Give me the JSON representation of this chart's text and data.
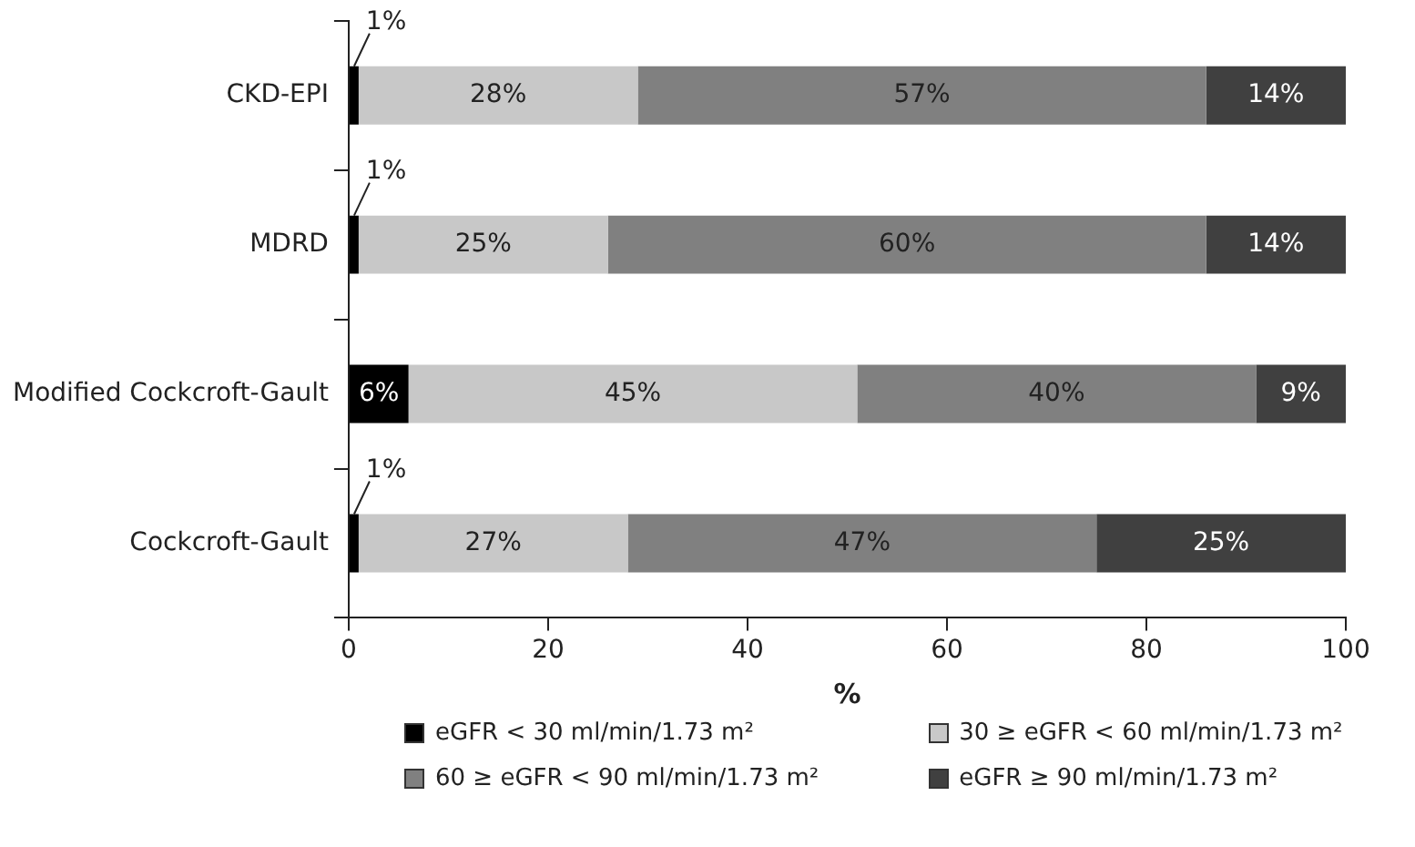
{
  "chart_data": {
    "type": "bar",
    "orientation": "horizontal",
    "stacked": true,
    "categories": [
      "CKD-EPI",
      "MDRD",
      "Modified Cockcroft-Gault",
      "Cockcroft-Gault"
    ],
    "series": [
      {
        "name": "eGFR < 30 ml/min/1.73 m²",
        "color": "#000000",
        "values": [
          1,
          1,
          6,
          1
        ],
        "value_labels": [
          "1%",
          "1%",
          "6%",
          "1%"
        ]
      },
      {
        "name": "30 ≥ eGFR < 60 ml/min/1.73 m²",
        "color": "#c8c8c8",
        "values": [
          28,
          25,
          45,
          27
        ],
        "value_labels": [
          "28%",
          "25%",
          "45%",
          "27%"
        ]
      },
      {
        "name": "60 ≥ eGFR < 90 ml/min/1.73 m²",
        "color": "#808080",
        "values": [
          57,
          60,
          40,
          47
        ],
        "value_labels": [
          "57%",
          "60%",
          "40%",
          "47%"
        ]
      },
      {
        "name": "eGFR ≥ 90 ml/min/1.73 m²",
        "color": "#404040",
        "values": [
          14,
          14,
          9,
          25
        ],
        "value_labels": [
          "14%",
          "14%",
          "9%",
          "25%"
        ]
      }
    ],
    "xlabel": "%",
    "xlim": [
      0,
      100
    ],
    "xticks": [
      0,
      20,
      40,
      60,
      80,
      100
    ],
    "grid": false,
    "legend": "bottom"
  }
}
